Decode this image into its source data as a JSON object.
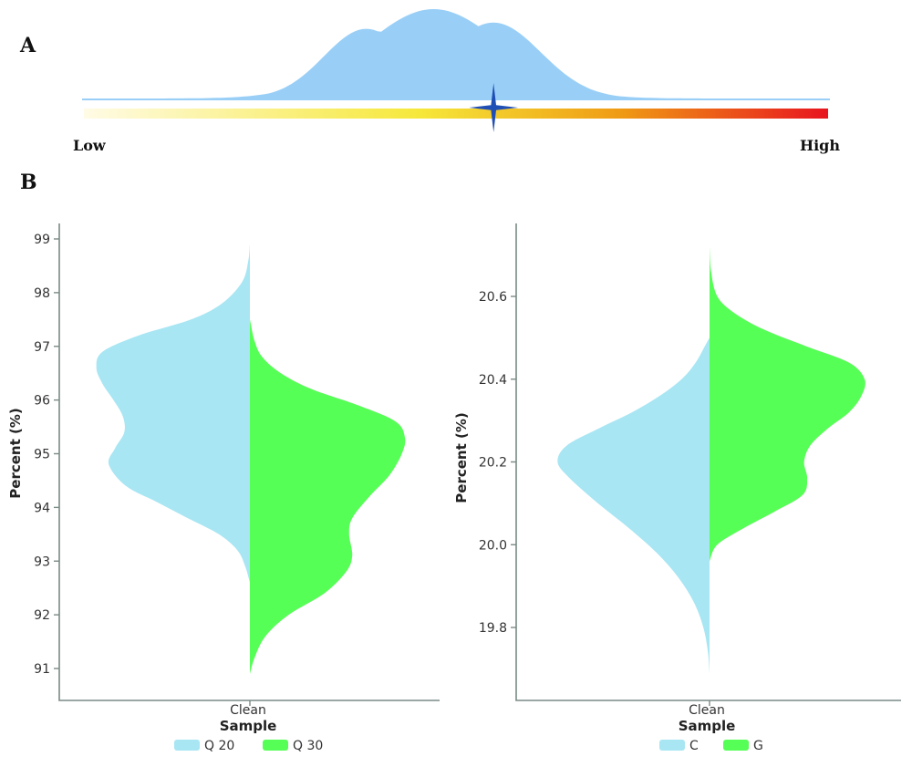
{
  "panel_a": {
    "label": "A",
    "low_label": "Low",
    "high_label": "High",
    "density_color": "#99cff7",
    "marker_color": "#1f4fb5",
    "gradient_colors": [
      "#fffbe6",
      "#f6e83a",
      "#ef9b14",
      "#e8141f"
    ],
    "marker_position": 0.56
  },
  "panel_b": {
    "label": "B"
  },
  "chart_data": [
    {
      "type": "violin",
      "split": true,
      "category": "Clean",
      "xlabel": "Sample",
      "ylabel": "Percent (%)",
      "ylim": [
        90.8,
        99.3
      ],
      "yticks": [
        91,
        92,
        93,
        94,
        95,
        96,
        97,
        98,
        99
      ],
      "series": [
        {
          "name": "Q 20",
          "side": "left",
          "color": "#a8e6f3",
          "density": [
            [
              92.6,
              0.0
            ],
            [
              92.9,
              0.03
            ],
            [
              93.2,
              0.08
            ],
            [
              93.5,
              0.2
            ],
            [
              93.8,
              0.4
            ],
            [
              94.1,
              0.6
            ],
            [
              94.4,
              0.8
            ],
            [
              94.8,
              0.91
            ],
            [
              95.1,
              0.87
            ],
            [
              95.4,
              0.81
            ],
            [
              95.7,
              0.82
            ],
            [
              96.0,
              0.88
            ],
            [
              96.3,
              0.95
            ],
            [
              96.6,
              0.99
            ],
            [
              96.9,
              0.95
            ],
            [
              97.2,
              0.72
            ],
            [
              97.5,
              0.38
            ],
            [
              97.8,
              0.18
            ],
            [
              98.2,
              0.05
            ],
            [
              98.6,
              0.01
            ],
            [
              98.9,
              0.0
            ]
          ]
        },
        {
          "name": "Q 30",
          "side": "right",
          "color": "#55ff55",
          "density": [
            [
              90.9,
              0.0
            ],
            [
              91.2,
              0.03
            ],
            [
              91.6,
              0.1
            ],
            [
              92.0,
              0.25
            ],
            [
              92.4,
              0.48
            ],
            [
              92.8,
              0.62
            ],
            [
              93.1,
              0.66
            ],
            [
              93.5,
              0.64
            ],
            [
              93.8,
              0.66
            ],
            [
              94.2,
              0.77
            ],
            [
              94.6,
              0.9
            ],
            [
              95.0,
              0.98
            ],
            [
              95.3,
              1.0
            ],
            [
              95.6,
              0.94
            ],
            [
              95.9,
              0.7
            ],
            [
              96.2,
              0.4
            ],
            [
              96.5,
              0.2
            ],
            [
              96.8,
              0.08
            ],
            [
              97.1,
              0.03
            ],
            [
              97.5,
              0.0
            ]
          ]
        }
      ]
    },
    {
      "type": "violin",
      "split": true,
      "category": "Clean",
      "xlabel": "Sample",
      "ylabel": "Percent (%)",
      "ylim": [
        19.68,
        20.74
      ],
      "yticks": [
        19.8,
        20.0,
        20.2,
        20.4,
        20.6
      ],
      "series": [
        {
          "name": "C",
          "side": "left",
          "color": "#a8e6f3",
          "density": [
            [
              19.69,
              0.0
            ],
            [
              19.74,
              0.01
            ],
            [
              19.8,
              0.04
            ],
            [
              19.86,
              0.1
            ],
            [
              19.92,
              0.2
            ],
            [
              19.98,
              0.34
            ],
            [
              20.04,
              0.52
            ],
            [
              20.1,
              0.72
            ],
            [
              20.16,
              0.9
            ],
            [
              20.2,
              0.98
            ],
            [
              20.24,
              0.92
            ],
            [
              20.28,
              0.72
            ],
            [
              20.32,
              0.5
            ],
            [
              20.36,
              0.32
            ],
            [
              20.4,
              0.18
            ],
            [
              20.44,
              0.09
            ],
            [
              20.48,
              0.03
            ],
            [
              20.5,
              0.0
            ]
          ]
        },
        {
          "name": "G",
          "side": "right",
          "color": "#55ff55",
          "density": [
            [
              19.96,
              0.0
            ],
            [
              20.0,
              0.05
            ],
            [
              20.04,
              0.22
            ],
            [
              20.08,
              0.42
            ],
            [
              20.12,
              0.6
            ],
            [
              20.16,
              0.63
            ],
            [
              20.2,
              0.61
            ],
            [
              20.24,
              0.65
            ],
            [
              20.28,
              0.76
            ],
            [
              20.32,
              0.9
            ],
            [
              20.36,
              0.98
            ],
            [
              20.4,
              1.0
            ],
            [
              20.44,
              0.9
            ],
            [
              20.48,
              0.62
            ],
            [
              20.52,
              0.35
            ],
            [
              20.56,
              0.16
            ],
            [
              20.6,
              0.05
            ],
            [
              20.66,
              0.01
            ],
            [
              20.72,
              0.0
            ]
          ]
        }
      ]
    }
  ]
}
